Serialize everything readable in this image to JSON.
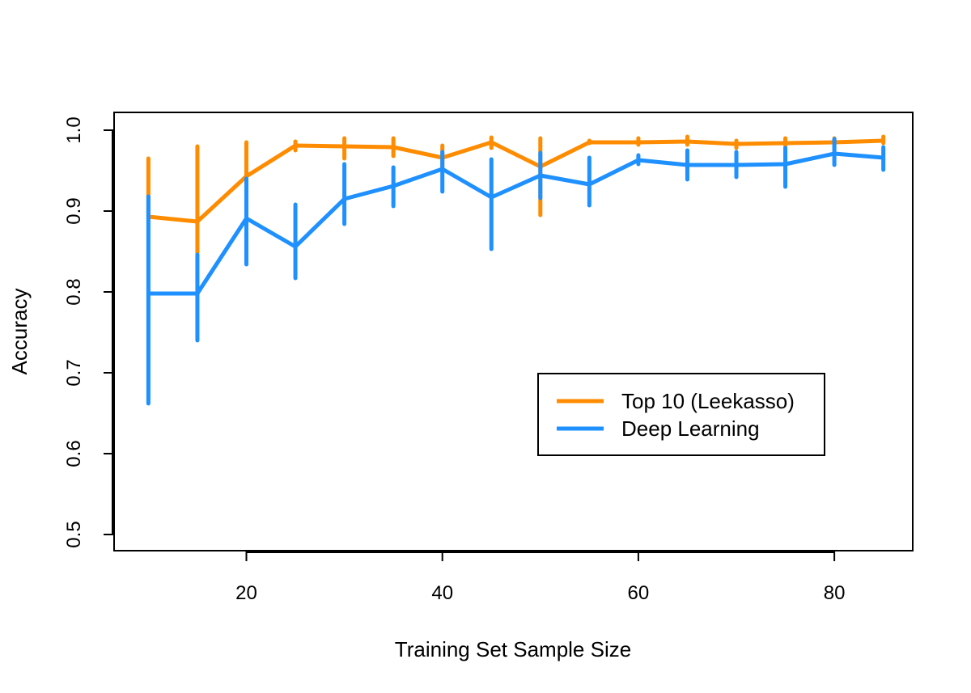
{
  "chart_data": {
    "type": "line",
    "title": "",
    "xlabel": "Training Set Sample Size",
    "ylabel": "Accuracy",
    "xlim": [
      6.5,
      88
    ],
    "ylim": [
      0.48,
      1.022
    ],
    "x_ticks": [
      20,
      40,
      60,
      80
    ],
    "x_tick_labels": [
      "20",
      "40",
      "60",
      "80"
    ],
    "y_ticks": [
      0.5,
      0.6,
      0.7,
      0.8,
      0.9,
      1.0
    ],
    "y_tick_labels": [
      "0.5",
      "0.6",
      "0.7",
      "0.8",
      "0.9",
      "1.0"
    ],
    "x": [
      10,
      15,
      20,
      25,
      30,
      35,
      40,
      45,
      50,
      55,
      60,
      65,
      70,
      75,
      80,
      85
    ],
    "series": [
      {
        "name": "Top 10 (Leekasso)",
        "color": "#FF8C00",
        "values": [
          0.893,
          0.887,
          0.943,
          0.981,
          0.98,
          0.979,
          0.966,
          0.985,
          0.955,
          0.985,
          0.985,
          0.986,
          0.983,
          0.984,
          0.985,
          0.987
        ],
        "lower": [
          0.894,
          0.848,
          0.91,
          0.975,
          0.965,
          0.968,
          0.95,
          0.978,
          0.895,
          0.984,
          0.982,
          0.982,
          0.978,
          0.98,
          0.981,
          0.984
        ],
        "upper": [
          0.965,
          0.98,
          0.985,
          0.986,
          0.99,
          0.99,
          0.981,
          0.991,
          0.99,
          0.987,
          0.99,
          0.992,
          0.987,
          0.99,
          0.99,
          0.992
        ]
      },
      {
        "name": "Deep Learning",
        "color": "#1E90FF",
        "values": [
          0.798,
          0.798,
          0.891,
          0.856,
          0.915,
          0.931,
          0.952,
          0.917,
          0.944,
          0.933,
          0.963,
          0.957,
          0.957,
          0.958,
          0.971,
          0.966
        ],
        "lower": [
          0.662,
          0.74,
          0.834,
          0.817,
          0.884,
          0.906,
          0.924,
          0.853,
          0.916,
          0.907,
          0.958,
          0.939,
          0.942,
          0.93,
          0.957,
          0.951
        ],
        "upper": [
          0.918,
          0.846,
          0.94,
          0.908,
          0.958,
          0.954,
          0.973,
          0.964,
          0.972,
          0.966,
          0.969,
          0.975,
          0.973,
          0.978,
          0.989,
          0.979
        ]
      }
    ],
    "legend": {
      "position": "bottom-right",
      "entries": [
        "Top 10 (Leekasso)",
        "Deep Learning"
      ]
    },
    "grid": false
  }
}
